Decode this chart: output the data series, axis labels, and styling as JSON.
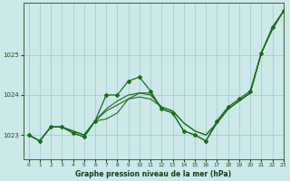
{
  "title": "Graphe pression niveau de la mer (hPa)",
  "background_color": "#cce8e8",
  "grid_color": "#99cccc",
  "line_color": "#1a6b1a",
  "xlim": [
    -0.5,
    23
  ],
  "ylim": [
    1022.4,
    1026.3
  ],
  "yticks": [
    1023,
    1024,
    1025
  ],
  "xticks": [
    0,
    1,
    2,
    3,
    4,
    5,
    6,
    7,
    8,
    9,
    10,
    11,
    12,
    13,
    14,
    15,
    16,
    17,
    18,
    19,
    20,
    21,
    22,
    23
  ],
  "series_smooth": [
    1023.0,
    1022.85,
    1023.2,
    1023.2,
    1023.1,
    1023.0,
    1023.35,
    1023.6,
    1023.75,
    1023.9,
    1023.95,
    1023.9,
    1023.7,
    1023.6,
    1023.3,
    1023.1,
    1023.0,
    1023.3,
    1023.65,
    1023.85,
    1024.05,
    1025.05,
    1025.65,
    1026.1
  ],
  "series_smooth2": [
    1023.0,
    1022.85,
    1023.2,
    1023.2,
    1023.1,
    1023.0,
    1023.35,
    1023.65,
    1023.85,
    1024.0,
    1024.05,
    1024.0,
    1023.7,
    1023.6,
    1023.3,
    1023.1,
    1023.0,
    1023.3,
    1023.65,
    1023.85,
    1024.05,
    1025.05,
    1025.65,
    1026.1
  ],
  "series_jagged": [
    1023.0,
    1022.85,
    1023.2,
    1023.2,
    1023.05,
    1022.95,
    1023.35,
    1024.0,
    1024.0,
    1024.35,
    1024.45,
    1024.1,
    1023.65,
    1023.55,
    1023.1,
    1023.0,
    1022.85,
    1023.35,
    1023.7,
    1023.9,
    1024.1,
    1025.05,
    1025.7,
    1026.1
  ],
  "series_zigzag": [
    1023.0,
    1022.85,
    1023.2,
    1023.2,
    1023.05,
    1022.95,
    1023.35,
    1023.4,
    1023.55,
    1023.9,
    1024.05,
    1024.05,
    1023.65,
    1023.55,
    1023.1,
    1023.0,
    1022.85,
    1023.3,
    1023.65,
    1023.85,
    1024.05,
    1025.05,
    1025.65,
    1026.1
  ]
}
